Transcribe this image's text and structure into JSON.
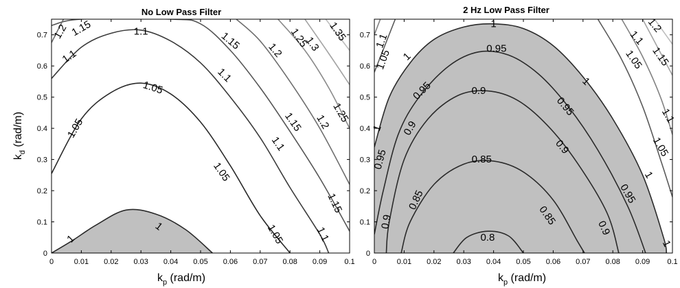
{
  "chart_data": [
    {
      "type": "contour",
      "title": "No Low Pass Filter",
      "xlabel_main": "k",
      "xlabel_sub": "p",
      "xlabel_unit": " (rad/m)",
      "ylabel_main": "k",
      "ylabel_sub": "d",
      "ylabel_unit": " (rad/m)",
      "xlim": [
        0,
        0.1
      ],
      "ylim": [
        0,
        0.75
      ],
      "xticks": [
        "0",
        "0.01",
        "0.02",
        "0.03",
        "0.04",
        "0.05",
        "0.06",
        "0.07",
        "0.08",
        "0.09",
        "0.1"
      ],
      "yticks": [
        "0",
        "0.1",
        "0.2",
        "0.3",
        "0.4",
        "0.5",
        "0.6",
        "0.7"
      ],
      "shaded_region": "values below 1",
      "contours": [
        {
          "level": "1",
          "color": "#2a2a2a",
          "points": [
            [
              0,
              0
            ],
            [
              0.007,
              0.04
            ],
            [
              0.015,
              0.09
            ],
            [
              0.025,
              0.138
            ],
            [
              0.035,
              0.125
            ],
            [
              0.045,
              0.075
            ],
            [
              0.054,
              0
            ]
          ]
        },
        {
          "level": "1.05",
          "color": "#2a2a2a",
          "points": [
            [
              0,
              0.255
            ],
            [
              0.01,
              0.43
            ],
            [
              0.02,
              0.515
            ],
            [
              0.03,
              0.545
            ],
            [
              0.04,
              0.51
            ],
            [
              0.05,
              0.42
            ],
            [
              0.06,
              0.28
            ],
            [
              0.07,
              0.12
            ],
            [
              0.08,
              0
            ]
          ]
        },
        {
          "level": "1.1",
          "color": "#3a3a3a",
          "points": [
            [
              0,
              0.56
            ],
            [
              0.01,
              0.66
            ],
            [
              0.02,
              0.705
            ],
            [
              0.03,
              0.715
            ],
            [
              0.04,
              0.68
            ],
            [
              0.05,
              0.61
            ],
            [
              0.06,
              0.5
            ],
            [
              0.07,
              0.37
            ],
            [
              0.08,
              0.21
            ],
            [
              0.09,
              0.06
            ],
            [
              0.093,
              0
            ]
          ]
        },
        {
          "level": "1.15",
          "color": "#555555",
          "points": [
            [
              0,
              0.73
            ],
            [
              0.01,
              0.75
            ],
            [
              0.04,
              0.75
            ],
            [
              0.05,
              0.735
            ],
            [
              0.06,
              0.65
            ],
            [
              0.07,
              0.53
            ],
            [
              0.08,
              0.39
            ],
            [
              0.09,
              0.24
            ],
            [
              0.1,
              0.07
            ]
          ]
        },
        {
          "level": "1.2",
          "color": "#6e6e6e",
          "points": [
            [
              0,
              0.675
            ],
            [
              0.004,
              0.75
            ]
          ],
          "extra": [
            [
              0.062,
              0.75
            ],
            [
              0.07,
              0.68
            ],
            [
              0.08,
              0.55
            ],
            [
              0.09,
              0.4
            ],
            [
              0.1,
              0.22
            ]
          ]
        },
        {
          "level": "1.25",
          "color": "#8a8a8a",
          "points": [
            [
              0.076,
              0.75
            ],
            [
              0.085,
              0.65
            ],
            [
              0.093,
              0.53
            ],
            [
              0.1,
              0.4
            ]
          ]
        },
        {
          "level": "1.3",
          "color": "#a3a3a3",
          "points": [
            [
              0.085,
              0.75
            ],
            [
              0.093,
              0.64
            ],
            [
              0.1,
              0.54
            ]
          ]
        },
        {
          "level": "1.35",
          "color": "#bdbdbd",
          "points": [
            [
              0.092,
              0.75
            ],
            [
              0.1,
              0.65
            ]
          ]
        }
      ],
      "labels": [
        {
          "text": "1",
          "x": 0.0065,
          "y": 0.045,
          "rot": -45
        },
        {
          "text": "1",
          "x": 0.036,
          "y": 0.085,
          "rot": 38
        },
        {
          "text": "1.05",
          "x": 0.008,
          "y": 0.4,
          "rot": -60
        },
        {
          "text": "1.05",
          "x": 0.034,
          "y": 0.53,
          "rot": 18
        },
        {
          "text": "1.05",
          "x": 0.057,
          "y": 0.26,
          "rot": 55
        },
        {
          "text": "1.05",
          "x": 0.075,
          "y": 0.06,
          "rot": 60
        },
        {
          "text": "1.1",
          "x": 0.006,
          "y": 0.63,
          "rot": -35
        },
        {
          "text": "1.1",
          "x": 0.03,
          "y": 0.71,
          "rot": 0
        },
        {
          "text": "1.1",
          "x": 0.058,
          "y": 0.57,
          "rot": 45
        },
        {
          "text": "1.1",
          "x": 0.076,
          "y": 0.35,
          "rot": 55
        },
        {
          "text": "1.1",
          "x": 0.091,
          "y": 0.06,
          "rot": 65
        },
        {
          "text": "1.15",
          "x": 0.01,
          "y": 0.72,
          "rot": -30
        },
        {
          "text": "1.15",
          "x": 0.06,
          "y": 0.68,
          "rot": 40
        },
        {
          "text": "1.15",
          "x": 0.081,
          "y": 0.42,
          "rot": 55
        },
        {
          "text": "1.15",
          "x": 0.095,
          "y": 0.16,
          "rot": 65
        },
        {
          "text": "1.2",
          "x": 0.003,
          "y": 0.71,
          "rot": -60
        },
        {
          "text": "1.2",
          "x": 0.075,
          "y": 0.65,
          "rot": 50
        },
        {
          "text": "1.2",
          "x": 0.091,
          "y": 0.42,
          "rot": 60
        },
        {
          "text": "1.25",
          "x": 0.083,
          "y": 0.69,
          "rot": 55
        },
        {
          "text": "1.25",
          "x": 0.097,
          "y": 0.45,
          "rot": 60
        },
        {
          "text": "1.3",
          "x": 0.0875,
          "y": 0.67,
          "rot": 55
        },
        {
          "text": "1.35",
          "x": 0.096,
          "y": 0.71,
          "rot": 55
        }
      ]
    },
    {
      "type": "contour",
      "title": "2 Hz Low Pass Filter",
      "xlabel_main": "k",
      "xlabel_sub": "p",
      "xlabel_unit": " (rad/m)",
      "xlim": [
        0,
        0.1
      ],
      "ylim": [
        0,
        0.75
      ],
      "xticks": [
        "0",
        "0.01",
        "0.02",
        "0.03",
        "0.04",
        "0.05",
        "0.06",
        "0.07",
        "0.08",
        "0.09",
        "0.1"
      ],
      "yticks": [
        "0",
        "0.1",
        "0.2",
        "0.3",
        "0.4",
        "0.5",
        "0.6",
        "0.7"
      ],
      "shaded_region": "values below 1",
      "contours": [
        {
          "level": "1",
          "color": "#2a2a2a",
          "points": [
            [
              0,
              0.34
            ],
            [
              0.005,
              0.5
            ],
            [
              0.012,
              0.61
            ],
            [
              0.02,
              0.685
            ],
            [
              0.03,
              0.725
            ],
            [
              0.04,
              0.735
            ],
            [
              0.05,
              0.72
            ],
            [
              0.06,
              0.665
            ],
            [
              0.07,
              0.565
            ],
            [
              0.08,
              0.43
            ],
            [
              0.09,
              0.25
            ],
            [
              0.097,
              0.05
            ],
            [
              0.098,
              0
            ]
          ]
        },
        {
          "level": "0.95",
          "color": "#2a2a2a",
          "points": [
            [
              0,
              0.06
            ],
            [
              0.003,
              0.2
            ],
            [
              0.008,
              0.38
            ],
            [
              0.015,
              0.5
            ],
            [
              0.025,
              0.6
            ],
            [
              0.035,
              0.645
            ],
            [
              0.045,
              0.635
            ],
            [
              0.055,
              0.575
            ],
            [
              0.065,
              0.47
            ],
            [
              0.075,
              0.33
            ],
            [
              0.085,
              0.15
            ],
            [
              0.091,
              0
            ]
          ]
        },
        {
          "level": "0.9",
          "color": "#2a2a2a",
          "points": [
            [
              0.004,
              0
            ],
            [
              0.005,
              0.1
            ],
            [
              0.01,
              0.3
            ],
            [
              0.018,
              0.43
            ],
            [
              0.028,
              0.505
            ],
            [
              0.038,
              0.52
            ],
            [
              0.048,
              0.49
            ],
            [
              0.058,
              0.41
            ],
            [
              0.068,
              0.29
            ],
            [
              0.078,
              0.13
            ],
            [
              0.082,
              0
            ]
          ]
        },
        {
          "level": "0.85",
          "color": "#2a2a2a",
          "points": [
            [
              0.009,
              0
            ],
            [
              0.012,
              0.1
            ],
            [
              0.02,
              0.22
            ],
            [
              0.03,
              0.285
            ],
            [
              0.04,
              0.295
            ],
            [
              0.05,
              0.26
            ],
            [
              0.06,
              0.17
            ],
            [
              0.068,
              0.04
            ],
            [
              0.0705,
              0
            ]
          ]
        },
        {
          "level": "0.8",
          "color": "#2a2a2a",
          "points": [
            [
              0.0265,
              0
            ],
            [
              0.031,
              0.05
            ],
            [
              0.038,
              0.07
            ],
            [
              0.045,
              0.055
            ],
            [
              0.05,
              0
            ]
          ]
        },
        {
          "level": "1.05",
          "color": "#5a5a5a",
          "points": [
            [
              0,
              0.58
            ],
            [
              0.007,
              0.75
            ]
          ],
          "extra": [
            [
              0.075,
              0.75
            ],
            [
              0.083,
              0.62
            ],
            [
              0.09,
              0.47
            ],
            [
              0.096,
              0.3
            ],
            [
              0.1,
              0.18
            ]
          ]
        },
        {
          "level": "1.1",
          "color": "#828282",
          "points": [
            [
              0,
              0.7
            ],
            [
              0.002,
              0.75
            ]
          ],
          "extra": [
            [
              0.083,
              0.75
            ],
            [
              0.09,
              0.63
            ],
            [
              0.096,
              0.5
            ],
            [
              0.1,
              0.38
            ]
          ]
        },
        {
          "level": "1.15",
          "color": "#a3a3a3",
          "points": [
            [
              0.09,
              0.75
            ],
            [
              0.095,
              0.66
            ],
            [
              0.1,
              0.57
            ]
          ]
        },
        {
          "level": "1.2",
          "color": "#bdbdbd",
          "points": [
            [
              0.094,
              0.75
            ],
            [
              0.1,
              0.67
            ]
          ]
        }
      ],
      "labels": [
        {
          "text": "1",
          "x": 0.001,
          "y": 0.4,
          "rot": -70
        },
        {
          "text": "1",
          "x": 0.011,
          "y": 0.63,
          "rot": -45
        },
        {
          "text": "1",
          "x": 0.04,
          "y": 0.735,
          "rot": 0
        },
        {
          "text": "1",
          "x": 0.071,
          "y": 0.55,
          "rot": 45
        },
        {
          "text": "1",
          "x": 0.092,
          "y": 0.25,
          "rot": 60
        },
        {
          "text": "1",
          "x": 0.098,
          "y": 0.03,
          "rot": 65
        },
        {
          "text": "0.95",
          "x": 0.002,
          "y": 0.3,
          "rot": -75
        },
        {
          "text": "0.95",
          "x": 0.016,
          "y": 0.52,
          "rot": -45
        },
        {
          "text": "0.95",
          "x": 0.041,
          "y": 0.655,
          "rot": 0
        },
        {
          "text": "0.95",
          "x": 0.064,
          "y": 0.47,
          "rot": 50
        },
        {
          "text": "0.95",
          "x": 0.085,
          "y": 0.19,
          "rot": 60
        },
        {
          "text": "0.9",
          "x": 0.004,
          "y": 0.1,
          "rot": -80
        },
        {
          "text": "0.9",
          "x": 0.012,
          "y": 0.4,
          "rot": -60
        },
        {
          "text": "0.9",
          "x": 0.035,
          "y": 0.52,
          "rot": 0
        },
        {
          "text": "0.9",
          "x": 0.063,
          "y": 0.34,
          "rot": 50
        },
        {
          "text": "0.9",
          "x": 0.077,
          "y": 0.08,
          "rot": 65
        },
        {
          "text": "0.85",
          "x": 0.014,
          "y": 0.17,
          "rot": -65
        },
        {
          "text": "0.85",
          "x": 0.036,
          "y": 0.3,
          "rot": 0
        },
        {
          "text": "0.85",
          "x": 0.058,
          "y": 0.12,
          "rot": 55
        },
        {
          "text": "0.8",
          "x": 0.038,
          "y": 0.05,
          "rot": 0
        },
        {
          "text": "1.05",
          "x": 0.003,
          "y": 0.62,
          "rot": -70
        },
        {
          "text": "1.05",
          "x": 0.087,
          "y": 0.62,
          "rot": 55
        },
        {
          "text": "1.05",
          "x": 0.096,
          "y": 0.34,
          "rot": 60
        },
        {
          "text": "1.1",
          "x": 0.0025,
          "y": 0.68,
          "rot": -70
        },
        {
          "text": "1.1",
          "x": 0.088,
          "y": 0.69,
          "rot": 50
        },
        {
          "text": "1.1",
          "x": 0.0985,
          "y": 0.44,
          "rot": 60
        },
        {
          "text": "1.15",
          "x": 0.096,
          "y": 0.63,
          "rot": 55
        },
        {
          "text": "1.2",
          "x": 0.094,
          "y": 0.73,
          "rot": 50
        }
      ]
    }
  ]
}
